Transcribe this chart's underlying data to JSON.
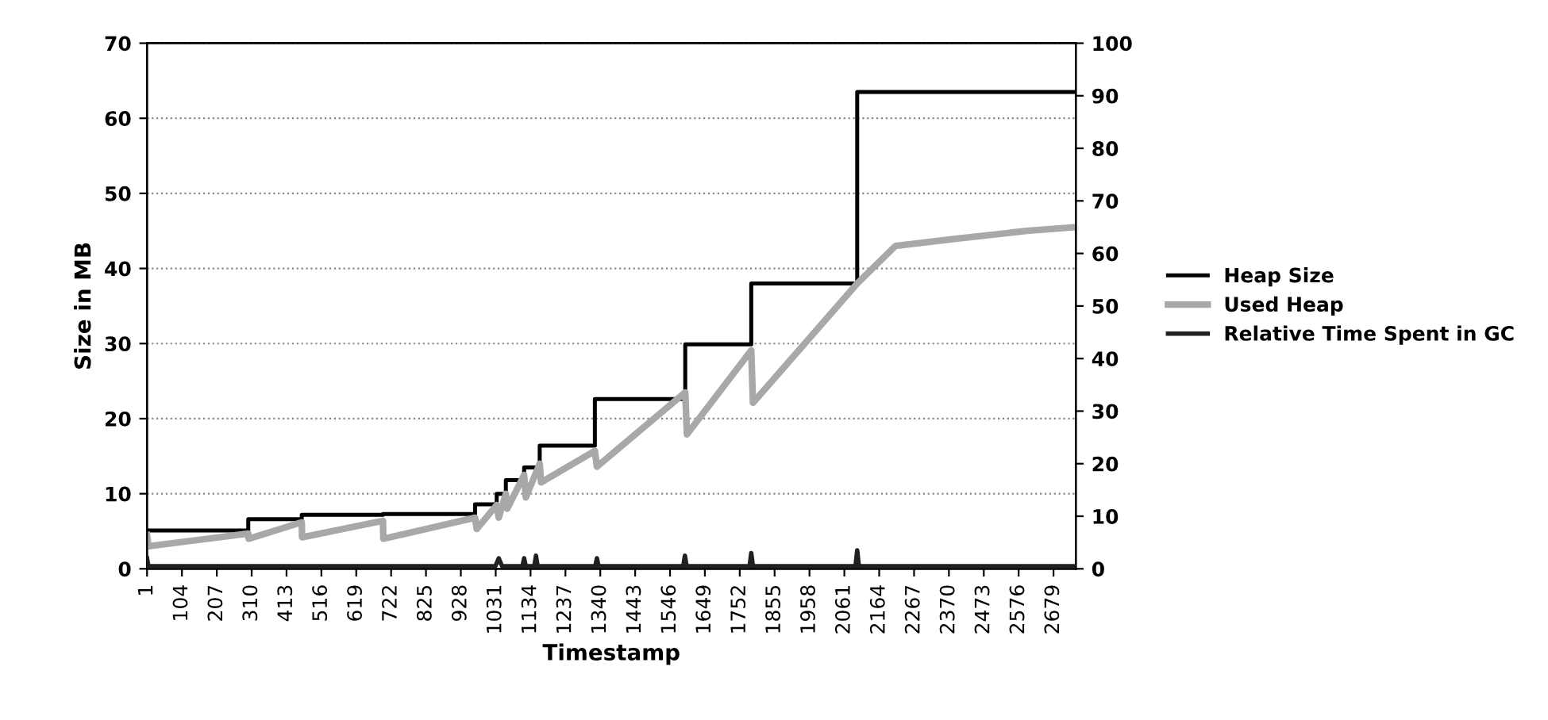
{
  "chart_data": {
    "type": "line",
    "xlabel": "Timestamp",
    "ylabel": "Size in MB",
    "xlim": [
      1,
      2745
    ],
    "xticks": [
      1,
      104,
      207,
      310,
      413,
      516,
      619,
      722,
      825,
      928,
      1031,
      1134,
      1237,
      1340,
      1443,
      1546,
      1649,
      1752,
      1855,
      1958,
      2061,
      2164,
      2267,
      2370,
      2473,
      2576,
      2679
    ],
    "ylim": [
      0,
      70
    ],
    "yticks": [
      0,
      10,
      20,
      30,
      40,
      50,
      60,
      70
    ],
    "y2lim": [
      0,
      100
    ],
    "y2ticks": [
      0,
      10,
      20,
      30,
      40,
      50,
      60,
      70,
      80,
      90,
      100
    ],
    "grid": "y",
    "legend": "right",
    "series": [
      {
        "name": "Heap Size",
        "type": "step",
        "color": "#000000",
        "x": [
          1,
          300,
          458,
          698,
          970,
          1034,
          1061,
          1115,
          1161,
          1324,
          1591,
          1786,
          2099,
          2745
        ],
        "values": [
          5.1,
          6.6,
          7.2,
          7.3,
          8.6,
          10.0,
          11.8,
          13.5,
          16.4,
          22.6,
          29.9,
          38.0,
          63.5,
          63.5
        ]
      },
      {
        "name": "Used Heap",
        "color": "#a8a8a8",
        "x": [
          1,
          5,
          300,
          301,
          458,
          459,
          698,
          699,
          970,
          975,
          1034,
          1040,
          1061,
          1065,
          1115,
          1120,
          1161,
          1165,
          1324,
          1330,
          1591,
          1596,
          1786,
          1791,
          2099,
          2212,
          2400,
          2600,
          2745
        ],
        "values": [
          4.5,
          3.0,
          4.7,
          4.0,
          6.2,
          4.2,
          6.4,
          4.0,
          6.8,
          5.3,
          8.5,
          6.8,
          10.0,
          8.0,
          12.5,
          9.5,
          14.0,
          11.5,
          15.7,
          13.6,
          23.5,
          17.9,
          29.1,
          22.1,
          38.0,
          43.0,
          44.0,
          45.0,
          45.5
        ]
      },
      {
        "name": "Relative Time Spent in GC",
        "axis": "y2",
        "color": "#202020",
        "x": [
          1,
          5,
          1030,
          1040,
          1050,
          1110,
          1115,
          1120,
          1145,
          1150,
          1155,
          1325,
          1330,
          1335,
          1585,
          1590,
          1595,
          1781,
          1786,
          1791,
          2094,
          2099,
          2104,
          2745
        ],
        "values": [
          2.0,
          0.5,
          0.5,
          2.0,
          0.5,
          0.5,
          2.0,
          0.5,
          0.5,
          2.5,
          0.5,
          0.5,
          2.0,
          0.5,
          0.5,
          2.5,
          0.5,
          0.5,
          3.0,
          0.5,
          0.5,
          3.5,
          0.5,
          0.5
        ]
      }
    ]
  }
}
